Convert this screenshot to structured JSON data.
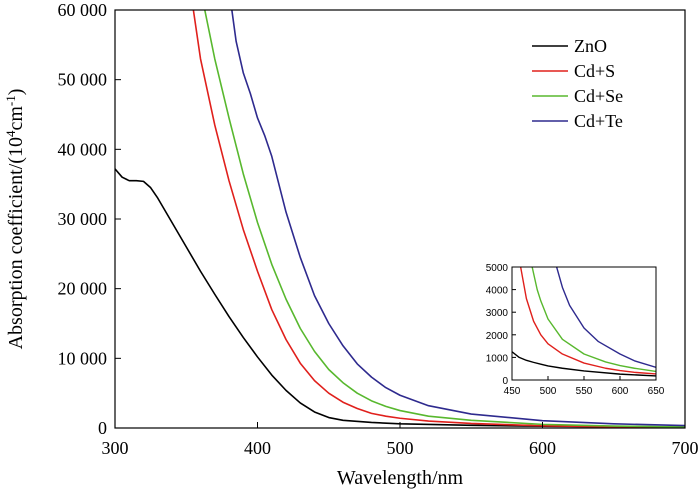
{
  "chart_data": [
    {
      "type": "line",
      "xlabel": "Wavelength/nm",
      "ylabel": "Absorption coefficient/(10",
      "ylabel_sup": "4",
      "ylabel_unit": "cm",
      "ylabel_sup2": "-1",
      "ylabel_close": ")",
      "xlim": [
        300,
        700
      ],
      "ylim": [
        0,
        60000
      ],
      "xticks": [
        300,
        400,
        500,
        600,
        700
      ],
      "xtick_labels": [
        "300",
        "400",
        "500",
        "600",
        "700"
      ],
      "yticks": [
        0,
        10000,
        20000,
        30000,
        40000,
        50000,
        60000
      ],
      "ytick_labels": [
        "0",
        "10 000",
        "20 000",
        "30 000",
        "40 000",
        "50 000",
        "60 000"
      ],
      "legend_position": "top-right",
      "series": [
        {
          "name": "ZnO",
          "color": "#000000",
          "x": [
            300,
            305,
            310,
            315,
            320,
            325,
            330,
            340,
            350,
            360,
            370,
            380,
            390,
            400,
            410,
            420,
            430,
            440,
            450,
            460,
            480,
            500,
            550,
            600,
            650,
            700
          ],
          "y": [
            37200,
            36000,
            35500,
            35500,
            35400,
            34500,
            33000,
            29500,
            26000,
            22500,
            19200,
            16000,
            13000,
            10200,
            7600,
            5400,
            3600,
            2300,
            1500,
            1100,
            800,
            600,
            380,
            250,
            180,
            150
          ]
        },
        {
          "name": "Cd+S",
          "color": "#e0201c",
          "x": [
            355,
            360,
            370,
            380,
            390,
            400,
            410,
            420,
            430,
            440,
            450,
            460,
            470,
            480,
            490,
            500,
            520,
            550,
            600,
            650,
            700
          ],
          "y": [
            60000,
            53000,
            43500,
            35500,
            28500,
            22500,
            17000,
            12700,
            9300,
            6800,
            5000,
            3700,
            2800,
            2100,
            1700,
            1400,
            1000,
            650,
            320,
            170,
            80
          ]
        },
        {
          "name": "Cd+Se",
          "color": "#58b82e",
          "x": [
            363,
            370,
            380,
            390,
            400,
            410,
            420,
            430,
            440,
            450,
            460,
            470,
            480,
            490,
            500,
            520,
            550,
            600,
            650,
            700
          ],
          "y": [
            60000,
            53000,
            44500,
            36500,
            29500,
            23500,
            18500,
            14300,
            11000,
            8400,
            6500,
            5000,
            3900,
            3100,
            2500,
            1700,
            1100,
            520,
            280,
            160
          ]
        },
        {
          "name": "Cd+Te",
          "color": "#2e2a8e",
          "x": [
            382,
            385,
            390,
            395,
            400,
            405,
            410,
            420,
            430,
            440,
            450,
            460,
            470,
            480,
            490,
            500,
            520,
            550,
            600,
            650,
            700
          ],
          "y": [
            60000,
            55500,
            51000,
            48000,
            44500,
            42000,
            39000,
            31000,
            24500,
            19000,
            15000,
            11800,
            9200,
            7300,
            5800,
            4700,
            3200,
            2000,
            1050,
            600,
            350
          ]
        }
      ]
    },
    {
      "type": "line",
      "inset": true,
      "xlim": [
        450,
        650
      ],
      "ylim": [
        0,
        5000
      ],
      "xticks": [
        450,
        500,
        550,
        600,
        650
      ],
      "xtick_labels": [
        "450",
        "500",
        "550",
        "600",
        "650"
      ],
      "yticks": [
        0,
        1000,
        2000,
        3000,
        4000,
        5000
      ],
      "ytick_labels": [
        "0",
        "1000",
        "2000",
        "3000",
        "4000",
        "5000"
      ],
      "series": [
        {
          "name": "ZnO",
          "color": "#000000",
          "x": [
            450,
            460,
            470,
            480,
            490,
            500,
            520,
            550,
            600,
            650
          ],
          "y": [
            1250,
            1000,
            870,
            780,
            700,
            620,
            520,
            400,
            260,
            180
          ]
        },
        {
          "name": "Cd+S",
          "color": "#e0201c",
          "x": [
            462,
            470,
            480,
            490,
            500,
            520,
            550,
            580,
            600,
            620,
            650
          ],
          "y": [
            5000,
            3600,
            2600,
            2000,
            1600,
            1150,
            750,
            520,
            420,
            340,
            270
          ]
        },
        {
          "name": "Cd+Se",
          "color": "#58b82e",
          "x": [
            478,
            485,
            490,
            500,
            520,
            550,
            580,
            600,
            620,
            650
          ],
          "y": [
            5000,
            4000,
            3500,
            2700,
            1800,
            1150,
            800,
            640,
            520,
            380
          ]
        },
        {
          "name": "Cd+Te",
          "color": "#2e2a8e",
          "x": [
            512,
            520,
            530,
            550,
            570,
            600,
            620,
            650
          ],
          "y": [
            5000,
            4100,
            3300,
            2300,
            1700,
            1150,
            850,
            560
          ]
        }
      ]
    }
  ]
}
